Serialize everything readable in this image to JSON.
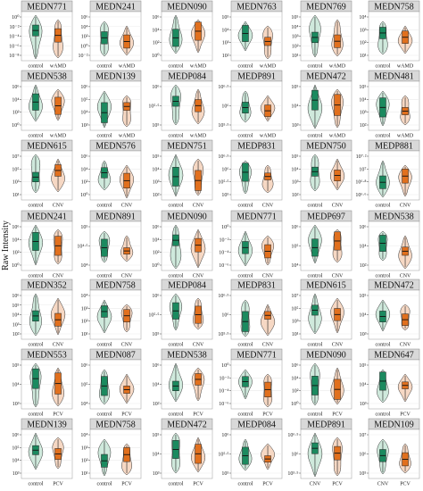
{
  "figure": {
    "y_axis_label": "Raw Intensity",
    "rows": 7,
    "cols": 6,
    "colors": {
      "control_fill": "#1b8a5f",
      "control_violin": "#cfe9dc",
      "case_fill": "#e1701e",
      "case_violin": "#f6d8c4",
      "header_bg": "#d9d9d9",
      "grid": "#ebebeb"
    }
  },
  "chart_data": [
    {
      "type": "violin",
      "title": "MEDN771",
      "categories": [
        "control",
        "wAMD"
      ],
      "yticks": [
        "10⁰",
        "10⁻²",
        "10⁻⁴",
        "10⁻⁶",
        "10⁻⁸"
      ],
      "scale": "log"
    },
    {
      "type": "violin",
      "title": "MEDN241",
      "categories": [
        "control",
        "wAMD"
      ],
      "yticks": [
        "10⁶",
        "10⁴",
        "10²",
        "10⁰",
        "10⁻²"
      ],
      "scale": "log"
    },
    {
      "type": "violin",
      "title": "MEDN090",
      "categories": [
        "control",
        "wAMD"
      ],
      "yticks": [
        "10⁶",
        "10⁴",
        "10²",
        "10⁰"
      ],
      "scale": "log"
    },
    {
      "type": "violin",
      "title": "MEDN763",
      "categories": [
        "control",
        "wAMD"
      ],
      "yticks": [
        "10⁵",
        "10⁴",
        "10³",
        "10²"
      ],
      "scale": "log"
    },
    {
      "type": "violin",
      "title": "MEDN769",
      "categories": [
        "control",
        "wAMD"
      ],
      "yticks": [
        "10⁵",
        "10⁴",
        "10³",
        "10²",
        "10¹"
      ],
      "scale": "log"
    },
    {
      "type": "violin",
      "title": "MEDN758",
      "categories": [
        "control",
        "wAMD"
      ],
      "yticks": [
        "10⁴",
        "10³",
        "10²",
        "10¹"
      ],
      "scale": "log"
    },
    {
      "type": "violin",
      "title": "MEDN538",
      "categories": [
        "control",
        "wAMD"
      ],
      "yticks": [
        "10⁶",
        "10⁴",
        "10²",
        "10⁰"
      ],
      "scale": "log"
    },
    {
      "type": "violin",
      "title": "MEDN139",
      "categories": [
        "control",
        "wAMD"
      ],
      "yticks": [
        "10⁶",
        "10⁵",
        "10⁴",
        "10³"
      ],
      "scale": "log"
    },
    {
      "type": "violin",
      "title": "MEDP084",
      "categories": [
        "control",
        "wAMD"
      ],
      "yticks": [
        "10⁶",
        "10⁵·⁵",
        "10⁵"
      ],
      "scale": "log"
    },
    {
      "type": "violin",
      "title": "MEDP891",
      "categories": [
        "control",
        "wAMD"
      ],
      "yticks": [
        "10⁶·⁵",
        "10⁶",
        "10⁵·⁵"
      ],
      "scale": "log"
    },
    {
      "type": "violin",
      "title": "MEDN472",
      "categories": [
        "control",
        "wAMD"
      ],
      "yticks": [
        "10⁵",
        "10⁴",
        "10³"
      ],
      "scale": "log"
    },
    {
      "type": "violin",
      "title": "MEDN481",
      "categories": [
        "control",
        "wAMD"
      ],
      "yticks": [
        "10⁵",
        "10⁴",
        "10³",
        "10²"
      ],
      "scale": "log"
    },
    {
      "type": "violin",
      "title": "MEDN615",
      "categories": [
        "control",
        "CNV"
      ],
      "yticks": [
        "10⁷",
        "10⁵",
        "10³",
        "10¹"
      ],
      "scale": "log"
    },
    {
      "type": "violin",
      "title": "MEDN576",
      "categories": [
        "control",
        "CNV"
      ],
      "yticks": [
        "10⁶",
        "10⁴",
        "10²",
        "10⁰"
      ],
      "scale": "log"
    },
    {
      "type": "violin",
      "title": "MEDN751",
      "categories": [
        "control",
        "CNV"
      ],
      "yticks": [
        "10⁵",
        "10⁴",
        "10³",
        "10²"
      ],
      "scale": "log"
    },
    {
      "type": "violin",
      "title": "MEDP831",
      "categories": [
        "control",
        "CNV"
      ],
      "yticks": [
        "10⁶·⁵",
        "10⁶",
        "10⁵·⁵",
        "10⁵"
      ],
      "scale": "log"
    },
    {
      "type": "violin",
      "title": "MEDN750",
      "categories": [
        "control",
        "CNV"
      ],
      "yticks": [
        "10⁵",
        "10⁴",
        "10³",
        "10²"
      ],
      "scale": "log"
    },
    {
      "type": "violin",
      "title": "MEDP881",
      "categories": [
        "control",
        "CNV"
      ],
      "yticks": [
        "10⁷·²",
        "10⁷",
        "10⁶·⁸",
        "10⁶·⁶"
      ],
      "scale": "log"
    },
    {
      "type": "violin",
      "title": "MEDN241",
      "categories": [
        "control",
        "CNV"
      ],
      "yticks": [
        "10⁶",
        "10⁴",
        "10²",
        "10⁰"
      ],
      "scale": "log"
    },
    {
      "type": "violin",
      "title": "MEDN891",
      "categories": [
        "control",
        "CNV"
      ],
      "yticks": [
        "10⁵",
        "10⁴·⁵",
        "10⁴"
      ],
      "scale": "log"
    },
    {
      "type": "violin",
      "title": "MEDN090",
      "categories": [
        "control",
        "CNV"
      ],
      "yticks": [
        "10⁶",
        "10⁴",
        "10²",
        "10⁰"
      ],
      "scale": "log"
    },
    {
      "type": "violin",
      "title": "MEDN771",
      "categories": [
        "control",
        "CNV"
      ],
      "yticks": [
        "10⁰",
        "10⁻²",
        "10⁻⁴",
        "10⁻⁶"
      ],
      "scale": "log"
    },
    {
      "type": "violin",
      "title": "MEDP697",
      "categories": [
        "control",
        "CNV"
      ],
      "yticks": [
        "10⁶",
        "10⁵",
        "10⁴"
      ],
      "scale": "log"
    },
    {
      "type": "violin",
      "title": "MEDN538",
      "categories": [
        "control",
        "CNV"
      ],
      "yticks": [
        "10⁶",
        "10⁴",
        "10²"
      ],
      "scale": "log"
    },
    {
      "type": "violin",
      "title": "MEDN352",
      "categories": [
        "control",
        "CNV"
      ],
      "yticks": [
        "10⁶",
        "10⁵",
        "10⁴",
        "10³",
        "10²"
      ],
      "scale": "log"
    },
    {
      "type": "violin",
      "title": "MEDN758",
      "categories": [
        "control",
        "CNV"
      ],
      "yticks": [
        "10⁴",
        "10³",
        "10²",
        "10¹"
      ],
      "scale": "log"
    },
    {
      "type": "violin",
      "title": "MEDP084",
      "categories": [
        "control",
        "CNV"
      ],
      "yticks": [
        "10⁶",
        "10⁵·⁵",
        "10⁵"
      ],
      "scale": "log"
    },
    {
      "type": "violin",
      "title": "MEDP831",
      "categories": [
        "control",
        "CNV"
      ],
      "yticks": [
        "10⁶·⁵",
        "10⁶",
        "10⁵·⁵"
      ],
      "scale": "log"
    },
    {
      "type": "violin",
      "title": "MEDN615",
      "categories": [
        "control",
        "CNV"
      ],
      "yticks": [
        "10⁷",
        "10⁵",
        "10³",
        "10¹"
      ],
      "scale": "log"
    },
    {
      "type": "violin",
      "title": "MEDN472",
      "categories": [
        "control",
        "CNV"
      ],
      "yticks": [
        "10⁵",
        "10⁴",
        "10³"
      ],
      "scale": "log"
    },
    {
      "type": "violin",
      "title": "MEDN553",
      "categories": [
        "control",
        "PCV"
      ],
      "yticks": [
        "10⁵",
        "10⁴",
        "10³"
      ],
      "scale": "log"
    },
    {
      "type": "violin",
      "title": "MEDN087",
      "categories": [
        "control",
        "PCV"
      ],
      "yticks": [
        "10⁶",
        "10⁵",
        "10⁴"
      ],
      "scale": "log"
    },
    {
      "type": "violin",
      "title": "MEDN538",
      "categories": [
        "control",
        "PCV"
      ],
      "yticks": [
        "10⁶",
        "10⁴",
        "10²"
      ],
      "scale": "log"
    },
    {
      "type": "violin",
      "title": "MEDN771",
      "categories": [
        "control",
        "PCV"
      ],
      "yticks": [
        "10⁰",
        "10⁻²",
        "10⁻⁴",
        "10⁻⁶"
      ],
      "scale": "log"
    },
    {
      "type": "violin",
      "title": "MEDN090",
      "categories": [
        "control",
        "PCV"
      ],
      "yticks": [
        "10⁶",
        "10⁴",
        "10²",
        "10⁰"
      ],
      "scale": "log"
    },
    {
      "type": "violin",
      "title": "MEDN647",
      "categories": [
        "control",
        "PCV"
      ],
      "yticks": [
        "10⁵",
        "10⁴",
        "10³"
      ],
      "scale": "log"
    },
    {
      "type": "violin",
      "title": "MEDN139",
      "categories": [
        "control",
        "PCV"
      ],
      "yticks": [
        "10⁶",
        "10⁵",
        "10⁴",
        "10³"
      ],
      "scale": "log"
    },
    {
      "type": "violin",
      "title": "MEDN758",
      "categories": [
        "control",
        "PCV"
      ],
      "yticks": [
        "10⁴",
        "10³",
        "10²",
        "10¹"
      ],
      "scale": "log"
    },
    {
      "type": "violin",
      "title": "MEDN472",
      "categories": [
        "control",
        "PCV"
      ],
      "yticks": [
        "10⁵",
        "10⁴",
        "10³"
      ],
      "scale": "log"
    },
    {
      "type": "violin",
      "title": "MEDP084",
      "categories": [
        "control",
        "PCV"
      ],
      "yticks": [
        "10⁶",
        "10⁵·⁵",
        "10⁵"
      ],
      "scale": "log"
    },
    {
      "type": "violin",
      "title": "MEDP891",
      "categories": [
        "CNV",
        "PCV"
      ],
      "yticks": [
        "10⁶·⁵",
        "10⁶",
        "10⁵·⁵"
      ],
      "scale": "log"
    },
    {
      "type": "violin",
      "title": "MEDN109",
      "categories": [
        "CNV",
        "PCV"
      ],
      "yticks": [
        "10⁷",
        "10⁶",
        "10⁵"
      ],
      "scale": "log"
    }
  ]
}
